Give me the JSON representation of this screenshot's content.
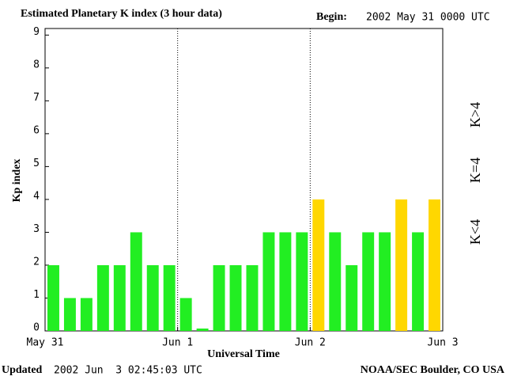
{
  "chart_data": {
    "type": "bar",
    "title": "Estimated Planetary K index (3 hour data)",
    "begin_label": "Begin:",
    "begin": "2002 May 31 0000 UTC",
    "y_label": "Kp index",
    "x_label": "Universal Time",
    "updated_label": "Updated",
    "updated": "2002 Jun  3 02:45:03 UTC",
    "source": "NOAA/SEC Boulder, CO USA",
    "x": [
      0,
      0.125,
      0.25,
      0.375,
      0.5,
      0.625,
      0.75,
      0.875,
      1,
      1.125,
      1.25,
      1.375,
      1.5,
      1.625,
      1.75,
      1.875,
      2,
      2.125,
      2.25,
      2.375,
      2.5,
      2.625,
      2.75,
      2.875
    ],
    "bar_width": 0.125,
    "values": [
      2,
      1,
      1,
      2,
      2,
      3,
      2,
      2,
      1,
      0,
      2,
      2,
      2,
      3,
      3,
      3,
      4,
      3,
      2,
      3,
      3,
      4,
      3,
      4
    ],
    "colors": [
      "#22ee22",
      "#22ee22",
      "#22ee22",
      "#22ee22",
      "#22ee22",
      "#22ee22",
      "#22ee22",
      "#22ee22",
      "#22ee22",
      "#22ee22",
      "#22ee22",
      "#22ee22",
      "#22ee22",
      "#22ee22",
      "#22ee22",
      "#22ee22",
      "#ffd700",
      "#22ee22",
      "#22ee22",
      "#22ee22",
      "#22ee22",
      "#ffd700",
      "#22ee22",
      "#ffd700"
    ],
    "legend": [
      {
        "label": "K<4",
        "color": "#22ee22"
      },
      {
        "label": "K=4",
        "color": "#ffd700"
      },
      {
        "label": "K>4",
        "color": "#ff3300"
      }
    ],
    "xlim": [
      0,
      3
    ],
    "xticks": [
      {
        "value": 0,
        "label": "May 31"
      },
      {
        "value": 1,
        "label": "Jun 1"
      },
      {
        "value": 2,
        "label": "Jun 2"
      },
      {
        "value": 3,
        "label": "Jun 3"
      }
    ],
    "day_lines": [
      1,
      2
    ],
    "ylim": [
      0,
      9.2
    ],
    "yticks": [
      0,
      1,
      2,
      3,
      4,
      5,
      6,
      7,
      8,
      9
    ]
  }
}
